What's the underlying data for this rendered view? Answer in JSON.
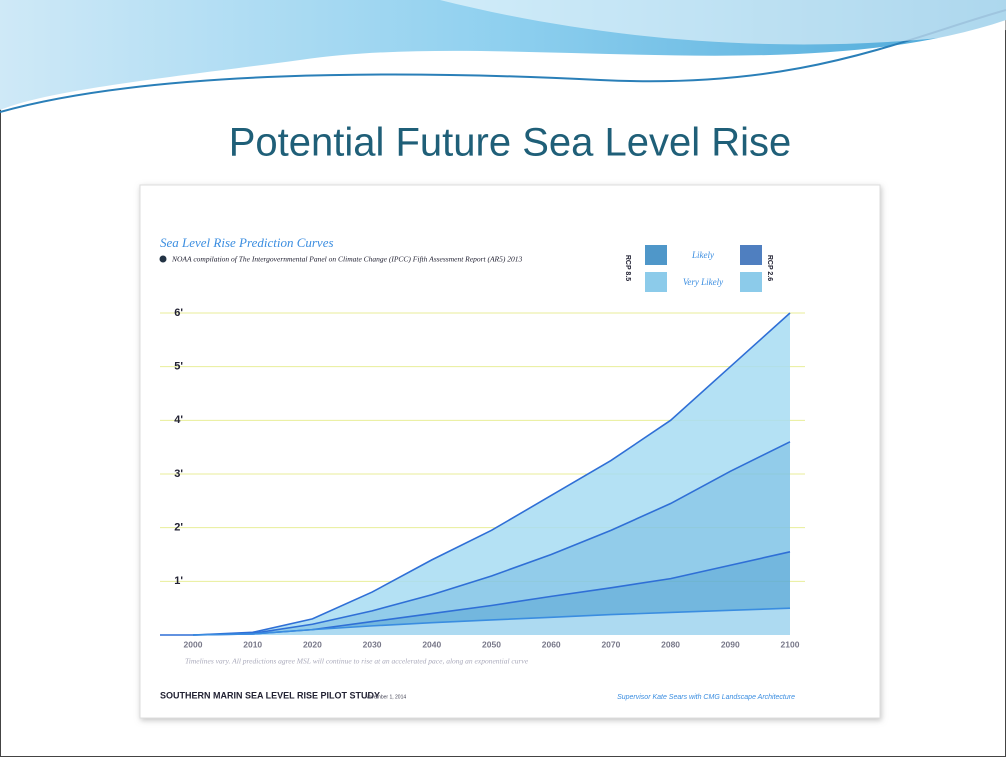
{
  "slide": {
    "title": "Potential Future Sea Level Rise"
  },
  "chart_data": {
    "type": "line",
    "title": "Sea Level Rise Prediction Curves",
    "subtitle": "NOAA compilation of The Intergovernmental Panel on Climate Change (IPCC) Fifth Assessment Report (AR5) 2013",
    "legend": [
      "Likely",
      "Very Likely"
    ],
    "scenarios": [
      "RCP 8.5",
      "RCP 2.6"
    ],
    "note": "Timelines vary. All predictions agree MSL will continue to rise at an accelerated pace, along an exponential curve",
    "footer": {
      "study": "SOUTHERN MARIN SEA LEVEL RISE PILOT STUDY",
      "date": "November 1, 2014",
      "credit": "Supervisor Kate Sears with CMG Landscape Architecture"
    },
    "x": [
      2000,
      2010,
      2020,
      2030,
      2040,
      2050,
      2060,
      2070,
      2080,
      2090,
      2100
    ],
    "xlim": [
      2000,
      2100
    ],
    "xticks": [
      2000,
      2010,
      2020,
      2030,
      2040,
      2050,
      2060,
      2070,
      2080,
      2090,
      2100
    ],
    "ylim": [
      0,
      6
    ],
    "yticks": [
      {
        "value": 1,
        "label": "1'"
      },
      {
        "value": 2,
        "label": "2'"
      },
      {
        "value": 3,
        "label": "3'"
      },
      {
        "value": 4,
        "label": "4'"
      },
      {
        "value": 5,
        "label": "5'"
      },
      {
        "value": 6,
        "label": "6'"
      }
    ],
    "grid": true,
    "series": [
      {
        "color": "#2f6fd6",
        "values": [
          0,
          0.05,
          0.3,
          0.8,
          1.4,
          1.95,
          2.6,
          3.25,
          4.0,
          5.0,
          6.0
        ]
      },
      {
        "color": "#2f6fd6",
        "values": [
          0,
          0.03,
          0.2,
          0.45,
          0.75,
          1.1,
          1.5,
          1.95,
          2.45,
          3.05,
          3.6
        ]
      },
      {
        "color": "#2f6fd6",
        "values": [
          0,
          0.02,
          0.1,
          0.25,
          0.4,
          0.55,
          0.72,
          0.88,
          1.05,
          1.3,
          1.55
        ]
      },
      {
        "color": "#3a8de0",
        "values": [
          0,
          0.02,
          0.1,
          0.17,
          0.23,
          0.28,
          0.33,
          0.38,
          0.42,
          0.46,
          0.5
        ]
      }
    ]
  }
}
